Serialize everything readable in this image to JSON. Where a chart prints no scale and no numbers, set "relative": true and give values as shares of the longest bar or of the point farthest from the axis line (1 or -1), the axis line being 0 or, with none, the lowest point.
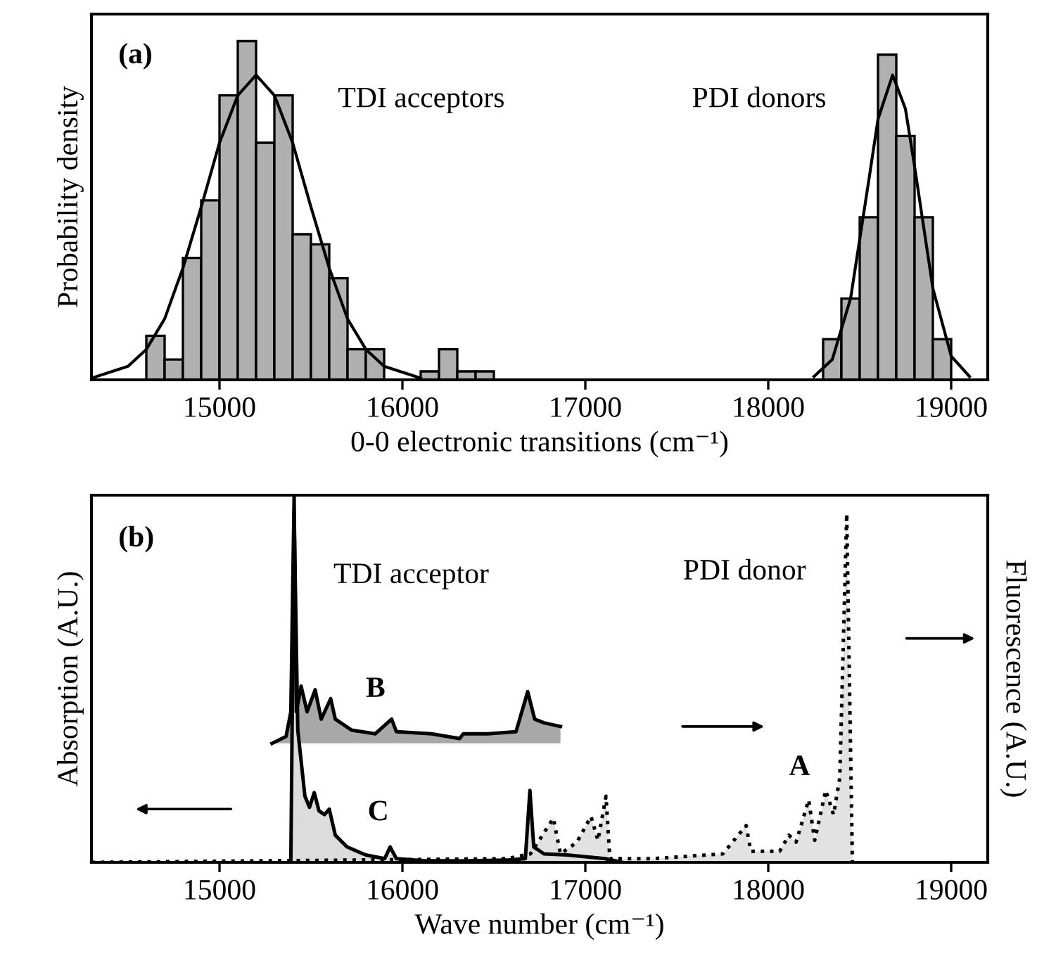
{
  "chart_data": [
    {
      "type": "histogram",
      "relative": true,
      "xlabel": "0-0 electronic transitions (cm⁻¹)",
      "ylabel": "Probability density",
      "annotations": [
        "(a)",
        "TDI acceptors",
        "PDI donors"
      ],
      "xlim": [
        14300,
        19200
      ],
      "xticks": [
        15000,
        16000,
        17000,
        18000,
        19000
      ],
      "tick_labels": "x",
      "grid": false,
      "legend": false,
      "color": "#b0b0b0",
      "bins": [
        14600,
        14700,
        14800,
        14900,
        15000,
        15100,
        15200,
        15300,
        15400,
        15500,
        15600,
        15700,
        15800,
        15900,
        16000,
        16100,
        16200,
        16300,
        16400,
        16500,
        16600,
        16700,
        16800,
        16900,
        17000,
        17100,
        17200,
        17300,
        17400,
        17500,
        17600,
        17700,
        17800,
        17900,
        18000,
        18100,
        18200,
        18300,
        18400,
        18500,
        18600,
        18700,
        18800,
        18900,
        19000
      ],
      "values": [
        0.13,
        0.06,
        0.36,
        0.53,
        0.84,
        1.0,
        0.7,
        0.84,
        0.43,
        0.4,
        0.3,
        0.09,
        0.09,
        0,
        0,
        0.025,
        0.09,
        0.025,
        0.025,
        0,
        0,
        0,
        0,
        0,
        0,
        0,
        0,
        0,
        0,
        0,
        0,
        0,
        0,
        0,
        0,
        0,
        0,
        0.12,
        0.24,
        0.48,
        0.96,
        0.72,
        0.48,
        0.12
      ],
      "series": [
        {
          "type": "line",
          "color": "#000000",
          "x": [
            14300,
            14500,
            14600,
            14700,
            14800,
            14900,
            15000,
            15100,
            15200,
            15300,
            15400,
            15500,
            15600,
            15700,
            15800,
            15900,
            16100
          ],
          "values": [
            0.005,
            0.04,
            0.09,
            0.18,
            0.33,
            0.51,
            0.7,
            0.84,
            0.9,
            0.84,
            0.7,
            0.51,
            0.33,
            0.18,
            0.09,
            0.04,
            0.005
          ]
        },
        {
          "type": "line",
          "color": "#000000",
          "x": [
            18250,
            18350,
            18450,
            18550,
            18600,
            18680,
            18750,
            18800,
            18900,
            19000,
            19100
          ],
          "values": [
            0.01,
            0.06,
            0.24,
            0.59,
            0.77,
            0.9,
            0.8,
            0.63,
            0.27,
            0.07,
            0.01
          ]
        }
      ]
    },
    {
      "type": "area",
      "relative": true,
      "xlabel": "Wave number (cm⁻¹)",
      "ylabel": "Absorption (A.U.)",
      "y2label": "Fluorescence (A.U.)",
      "annotations": [
        "(b)",
        "TDI acceptor",
        "PDI donor"
      ],
      "xlim": [
        14300,
        19200
      ],
      "xticks": [
        15000,
        16000,
        17000,
        18000,
        19000
      ],
      "tick_labels": "x",
      "grid": false,
      "legend": false,
      "series": [
        {
          "name": "A",
          "color": "#e2e2e2",
          "line_style": "dotted",
          "x": [
            14300,
            16570,
            16700,
            16825,
            16864,
            16954,
            17031,
            17069,
            17113,
            17134,
            17365,
            17751,
            17879,
            17905,
            18062,
            18113,
            18152,
            18221,
            18254,
            18314,
            18357,
            18391,
            18429,
            18460
          ],
          "values": [
            0,
            0.01,
            0.023,
            0.12,
            0.023,
            0.055,
            0.125,
            0.06,
            0.18,
            0.01,
            0.01,
            0.023,
            0.1,
            0.03,
            0.03,
            0.074,
            0.055,
            0.17,
            0.06,
            0.196,
            0.13,
            0.23,
            0.95,
            0
          ]
        },
        {
          "name": "B",
          "color": "#a8a8a8",
          "line_style": "solid",
          "x": [
            15287,
            15364,
            15390,
            15408,
            15420,
            15446,
            15479,
            15523,
            15556,
            15608,
            15633,
            15723,
            15851,
            15941,
            15967,
            16159,
            16313,
            16333,
            16467,
            16621,
            16685,
            16723,
            16774,
            16864
          ],
          "values": [
            0.324,
            0.343,
            0.41,
            1.0,
            0.41,
            0.48,
            0.41,
            0.47,
            0.39,
            0.446,
            0.39,
            0.36,
            0.35,
            0.39,
            0.356,
            0.35,
            0.337,
            0.35,
            0.35,
            0.356,
            0.465,
            0.39,
            0.38,
            0.37
          ]
        },
        {
          "name": "C",
          "color": "#dcdcdc",
          "line_style": "solid",
          "x": [
            15390,
            15408,
            15428,
            15467,
            15492,
            15518,
            15544,
            15574,
            15600,
            15633,
            15697,
            15800,
            15903,
            15933,
            15967,
            16108,
            16313,
            16570,
            16672,
            16697,
            16718,
            16774,
            16900,
            17108,
            17200
          ],
          "values": [
            0,
            0.95,
            0.36,
            0.18,
            0.15,
            0.19,
            0.14,
            0.13,
            0.145,
            0.074,
            0.042,
            0.02,
            0.01,
            0.042,
            0.01,
            0.005,
            0.004,
            0.006,
            0.01,
            0.196,
            0.042,
            0.023,
            0.02,
            0.01,
            0
          ]
        }
      ]
    }
  ]
}
